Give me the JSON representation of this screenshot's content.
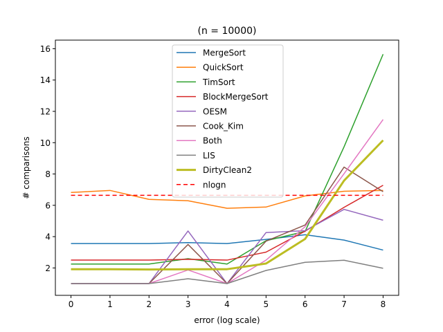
{
  "chart_data": {
    "type": "line",
    "title": "(n = 10000)",
    "xlabel": "error (log scale)",
    "ylabel": "# comparisons",
    "xlim": [
      -0.4,
      8.4
    ],
    "ylim": [
      0.25,
      16.55
    ],
    "xticks": [
      "0",
      "1",
      "2",
      "3",
      "4",
      "5",
      "6",
      "7",
      "8"
    ],
    "yticks": [
      "2",
      "4",
      "6",
      "8",
      "10",
      "12",
      "14",
      "16"
    ],
    "legend_position": "upper-center",
    "grid": false,
    "x": [
      0,
      1,
      2,
      3,
      4,
      5,
      6,
      7,
      8
    ],
    "series": [
      {
        "name": "MergeSort",
        "color": "#1f77b4",
        "width": 1.5,
        "dash": "",
        "values": [
          3.56,
          3.56,
          3.56,
          3.62,
          3.56,
          3.82,
          4.12,
          3.78,
          3.14
        ]
      },
      {
        "name": "QuickSort",
        "color": "#ff7f0e",
        "width": 1.5,
        "dash": "",
        "values": [
          6.82,
          6.95,
          6.38,
          6.29,
          5.81,
          5.89,
          6.6,
          6.9,
          6.95
        ]
      },
      {
        "name": "TimSort",
        "color": "#2ca02c",
        "width": 1.5,
        "dash": "",
        "values": [
          2.25,
          2.25,
          2.25,
          2.59,
          2.25,
          3.74,
          4.33,
          9.74,
          15.65
        ]
      },
      {
        "name": "BlockMergeSort",
        "color": "#d62728",
        "width": 1.5,
        "dash": "",
        "values": [
          2.5,
          2.5,
          2.5,
          2.55,
          2.5,
          3.01,
          4.35,
          5.87,
          7.28
        ]
      },
      {
        "name": "OESM",
        "color": "#9467bd",
        "width": 1.5,
        "dash": "",
        "values": [
          1.0,
          1.0,
          1.0,
          4.36,
          1.0,
          4.26,
          4.38,
          5.74,
          5.05
        ]
      },
      {
        "name": "Cook_Kim",
        "color": "#8c564b",
        "width": 1.5,
        "dash": "",
        "values": [
          1.0,
          1.0,
          1.0,
          3.5,
          1.0,
          3.71,
          4.74,
          8.44,
          6.87
        ]
      },
      {
        "name": "Both",
        "color": "#e377c2",
        "width": 1.5,
        "dash": "",
        "values": [
          1.0,
          1.0,
          1.0,
          1.87,
          1.0,
          2.5,
          4.63,
          8.02,
          11.48
        ]
      },
      {
        "name": "LIS",
        "color": "#7f7f7f",
        "width": 1.5,
        "dash": "",
        "values": [
          1.0,
          1.0,
          1.0,
          1.31,
          1.0,
          1.84,
          2.36,
          2.49,
          1.98
        ]
      },
      {
        "name": "DirtyClean2",
        "color": "#bcbd22",
        "width": 3,
        "dash": "",
        "values": [
          1.92,
          1.92,
          1.9,
          1.92,
          1.92,
          2.28,
          3.85,
          7.58,
          10.15
        ]
      },
      {
        "name": "nlogn",
        "color": "#ff0000",
        "width": 1.5,
        "dash": "6,4",
        "values": [
          6.64,
          6.64,
          6.64,
          6.64,
          6.64,
          6.64,
          6.64,
          6.64,
          6.64
        ]
      }
    ]
  }
}
